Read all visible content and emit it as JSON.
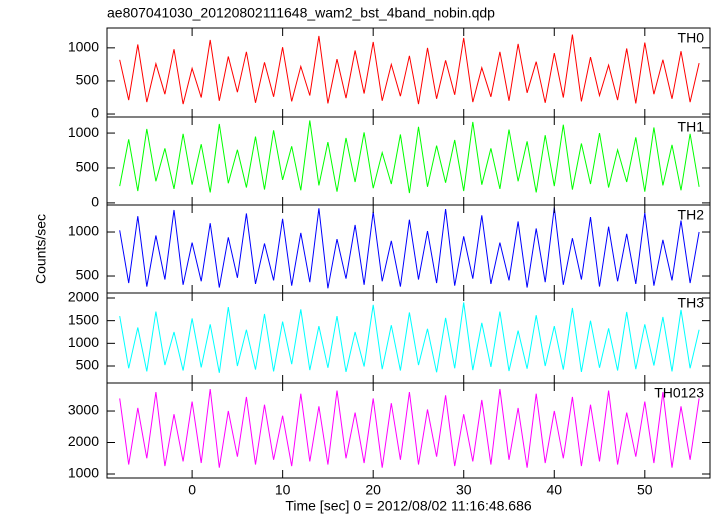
{
  "chart_data": [
    {
      "type": "line",
      "title": "ae807041030_20120802111648_wam2_bst_4band_nobin.qdp",
      "label": "TH0",
      "color": "#ff0000",
      "x": [
        -8,
        -7,
        -6,
        -5,
        -4,
        -3,
        -2,
        -1,
        0,
        1,
        2,
        3,
        4,
        5,
        6,
        7,
        8,
        9,
        10,
        11,
        12,
        13,
        14,
        15,
        16,
        17,
        18,
        19,
        20,
        21,
        22,
        23,
        24,
        25,
        26,
        27,
        28,
        29,
        30,
        31,
        32,
        33,
        34,
        35,
        36,
        37,
        38,
        39,
        40,
        41,
        42,
        43,
        44,
        45,
        46,
        47,
        48,
        49,
        50,
        51,
        52,
        53,
        54,
        55,
        56
      ],
      "values": [
        820,
        210,
        1050,
        180,
        760,
        300,
        980,
        150,
        690,
        250,
        1120,
        200,
        870,
        330,
        940,
        170,
        780,
        260,
        1010,
        190,
        720,
        280,
        1180,
        160,
        830,
        240,
        960,
        310,
        1090,
        200,
        750,
        270,
        880,
        150,
        1000,
        230,
        810,
        290,
        1150,
        180,
        700,
        260,
        940,
        200,
        1060,
        320,
        790,
        170,
        920,
        250,
        1200,
        190,
        860,
        280,
        740,
        210,
        990,
        160,
        1080,
        300,
        820,
        230,
        950,
        180,
        770
      ],
      "xlim": [
        -9.4,
        57.2
      ],
      "xticks": [
        0,
        10,
        20,
        30,
        40,
        50
      ],
      "ylim": [
        -45,
        1300
      ],
      "yticks": [
        0,
        500,
        1000
      ]
    },
    {
      "type": "line",
      "label": "TH1",
      "color": "#00ff00",
      "x": [
        -8,
        -7,
        -6,
        -5,
        -4,
        -3,
        -2,
        -1,
        0,
        1,
        2,
        3,
        4,
        5,
        6,
        7,
        8,
        9,
        10,
        11,
        12,
        13,
        14,
        15,
        16,
        17,
        18,
        19,
        20,
        21,
        22,
        23,
        24,
        25,
        26,
        27,
        28,
        29,
        30,
        31,
        32,
        33,
        34,
        35,
        36,
        37,
        38,
        39,
        40,
        41,
        42,
        43,
        44,
        45,
        46,
        47,
        48,
        49,
        50,
        51,
        52,
        53,
        54,
        55,
        56
      ],
      "values": [
        240,
        910,
        170,
        1060,
        310,
        780,
        200,
        990,
        260,
        840,
        150,
        1130,
        280,
        760,
        220,
        950,
        190,
        1040,
        330,
        810,
        180,
        1180,
        250,
        870,
        160,
        930,
        300,
        1010,
        210,
        720,
        270,
        980,
        140,
        1090,
        230,
        820,
        290,
        900,
        170,
        1160,
        260,
        780,
        200,
        1050,
        310,
        880,
        150,
        970,
        240,
        1120,
        190,
        850,
        270,
        1000,
        220,
        760,
        300,
        940,
        160,
        1080,
        250,
        830,
        180,
        990,
        230
      ],
      "xlim": [
        -9.4,
        57.2
      ],
      "xticks": [
        0,
        10,
        20,
        30,
        40,
        50
      ],
      "ylim": [
        -30,
        1230
      ],
      "yticks": [
        0,
        500,
        1000
      ]
    },
    {
      "type": "line",
      "label": "TH2",
      "color": "#0000ff",
      "ylabel": "Counts/sec",
      "x": [
        -8,
        -7,
        -6,
        -5,
        -4,
        -3,
        -2,
        -1,
        0,
        1,
        2,
        3,
        4,
        5,
        6,
        7,
        8,
        9,
        10,
        11,
        12,
        13,
        14,
        15,
        16,
        17,
        18,
        19,
        20,
        21,
        22,
        23,
        24,
        25,
        26,
        27,
        28,
        29,
        30,
        31,
        32,
        33,
        34,
        35,
        36,
        37,
        38,
        39,
        40,
        41,
        42,
        43,
        44,
        45,
        46,
        47,
        48,
        49,
        50,
        51,
        52,
        53,
        54,
        55,
        56
      ],
      "values": [
        1020,
        420,
        1180,
        380,
        960,
        460,
        1250,
        400,
        880,
        440,
        1100,
        370,
        940,
        480,
        1210,
        410,
        870,
        450,
        1150,
        390,
        990,
        430,
        1270,
        360,
        920,
        470,
        1080,
        400,
        1230,
        440,
        900,
        380,
        1140,
        460,
        1010,
        420,
        1260,
        390,
        950,
        470,
        1190,
        410,
        880,
        450,
        1120,
        370,
        1040,
        430,
        1280,
        400,
        930,
        460,
        1170,
        380,
        1060,
        440,
        980,
        410,
        1220,
        390,
        910,
        450,
        1130,
        420,
        1000
      ],
      "xlim": [
        -9.4,
        57.2
      ],
      "xticks": [
        0,
        10,
        20,
        30,
        40,
        50
      ],
      "ylim": [
        307,
        1307
      ],
      "yticks": [
        500,
        1000
      ]
    },
    {
      "type": "line",
      "label": "TH3",
      "color": "#00ffff",
      "x": [
        -8,
        -7,
        -6,
        -5,
        -4,
        -3,
        -2,
        -1,
        0,
        1,
        2,
        3,
        4,
        5,
        6,
        7,
        8,
        9,
        10,
        11,
        12,
        13,
        14,
        15,
        16,
        17,
        18,
        19,
        20,
        21,
        22,
        23,
        24,
        25,
        26,
        27,
        28,
        29,
        30,
        31,
        32,
        33,
        34,
        35,
        36,
        37,
        38,
        39,
        40,
        41,
        42,
        43,
        44,
        45,
        46,
        47,
        48,
        49,
        50,
        51,
        52,
        53,
        54,
        55,
        56
      ],
      "values": [
        1600,
        450,
        1350,
        380,
        1700,
        520,
        1250,
        400,
        1550,
        470,
        1420,
        350,
        1800,
        500,
        1300,
        420,
        1650,
        380,
        1480,
        540,
        1750,
        410,
        1380,
        460,
        1600,
        370,
        1250,
        490,
        1850,
        430,
        1400,
        400,
        1680,
        520,
        1320,
        360,
        1560,
        450,
        1900,
        410,
        1450,
        480,
        1700,
        390,
        1280,
        440,
        1620,
        500,
        1380,
        420,
        1780,
        370,
        1500,
        460,
        1330,
        400,
        1690,
        430,
        1420,
        510,
        1580,
        380,
        1740,
        450,
        1300
      ],
      "xlim": [
        -9.4,
        57.2
      ],
      "xticks": [
        0,
        10,
        20,
        30,
        40,
        50
      ],
      "ylim": [
        125,
        2110
      ],
      "yticks": [
        500,
        1000,
        1500,
        2000
      ]
    },
    {
      "type": "line",
      "label": "TH0123",
      "color": "#ff00ff",
      "xlabel": "Time [sec] 0 = 2012/08/02 11:16:48.686",
      "x": [
        -8,
        -7,
        -6,
        -5,
        -4,
        -3,
        -2,
        -1,
        0,
        1,
        2,
        3,
        4,
        5,
        6,
        7,
        8,
        9,
        10,
        11,
        12,
        13,
        14,
        15,
        16,
        17,
        18,
        19,
        20,
        21,
        22,
        23,
        24,
        25,
        26,
        27,
        28,
        29,
        30,
        31,
        32,
        33,
        34,
        35,
        36,
        37,
        38,
        39,
        40,
        41,
        42,
        43,
        44,
        45,
        46,
        47,
        48,
        49,
        50,
        51,
        52,
        53,
        54,
        55,
        56
      ],
      "values": [
        3400,
        1300,
        3100,
        1500,
        3600,
        1250,
        2900,
        1400,
        3300,
        1350,
        3700,
        1200,
        3000,
        1550,
        3450,
        1300,
        3200,
        1450,
        2850,
        1250,
        3550,
        1400,
        3150,
        1300,
        3650,
        1500,
        2950,
        1350,
        3400,
        1200,
        3250,
        1450,
        3600,
        1300,
        3050,
        1550,
        3500,
        1250,
        2900,
        1400,
        3350,
        1300,
        3700,
        1450,
        3100,
        1200,
        3550,
        1350,
        3000,
        1500,
        3450,
        1250,
        3200,
        1400,
        3650,
        1300,
        2950,
        1550,
        3300,
        1350,
        3600,
        1200,
        3150,
        1450,
        3400
      ],
      "xlim": [
        -9.4,
        57.2
      ],
      "xticks": [
        0,
        10,
        20,
        30,
        40,
        50
      ],
      "ylim": [
        873,
        3890
      ],
      "yticks": [
        1000,
        2000,
        3000
      ]
    }
  ]
}
